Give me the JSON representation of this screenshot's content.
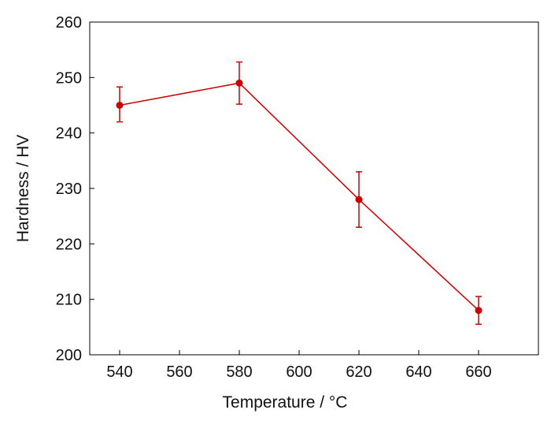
{
  "chart_data": {
    "type": "line",
    "xlabel": "Temperature  / °C",
    "ylabel": "Hardness / HV",
    "xlim": [
      530,
      680
    ],
    "ylim": [
      200,
      260
    ],
    "xticks": [
      540,
      560,
      580,
      600,
      620,
      640,
      660
    ],
    "yticks": [
      200,
      210,
      220,
      230,
      240,
      250,
      260
    ],
    "grid": false,
    "legend": "none",
    "series": [
      {
        "color": "#cc0000",
        "x": [
          540,
          580,
          620,
          660
        ],
        "y": [
          245,
          249,
          228,
          208
        ],
        "error_low": [
          242,
          245.2,
          223,
          205.5
        ],
        "error_high": [
          248.3,
          252.8,
          233,
          210.5
        ]
      }
    ]
  }
}
